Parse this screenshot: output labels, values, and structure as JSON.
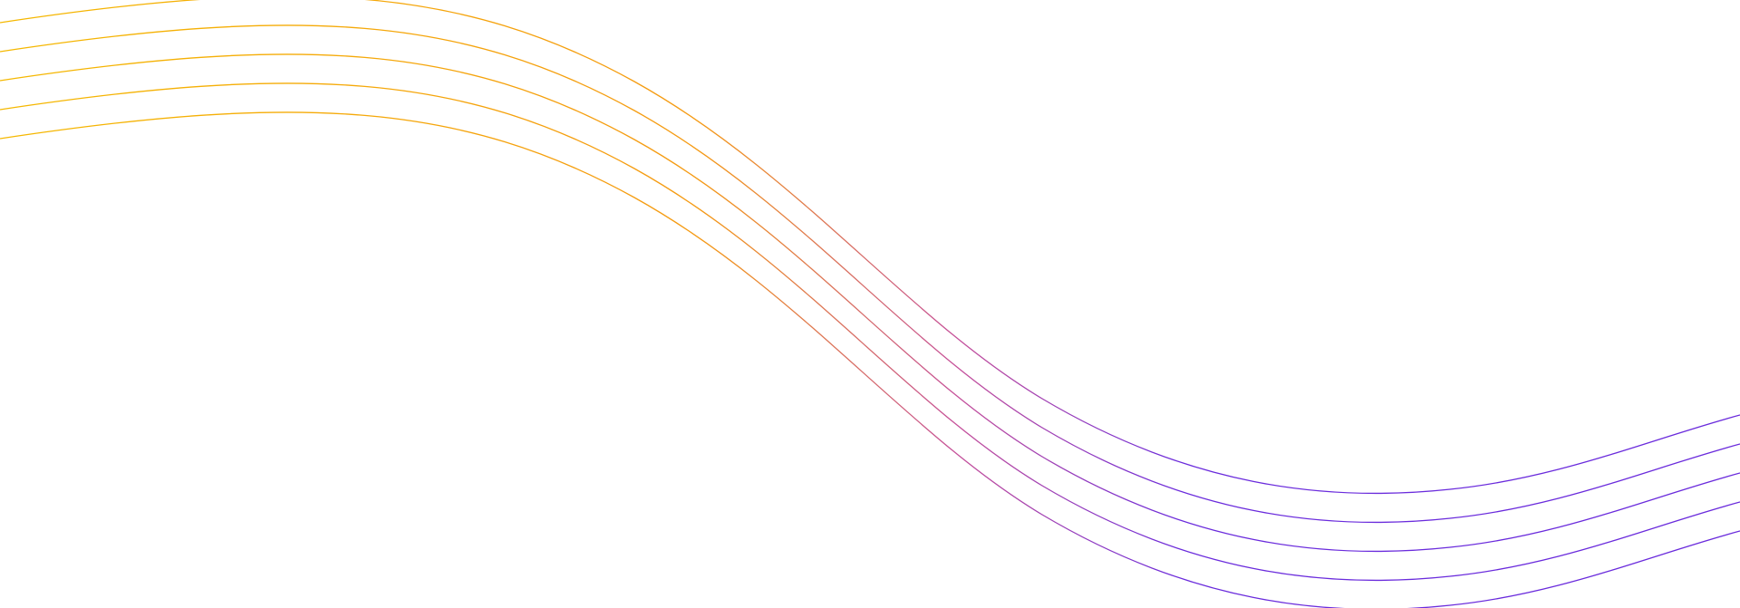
{
  "artwork": {
    "line_count": 5,
    "gradient_colors": [
      "#f5b800",
      "#f59a12",
      "#c5509a",
      "#6a2bdc"
    ],
    "background": "#ffffff"
  }
}
